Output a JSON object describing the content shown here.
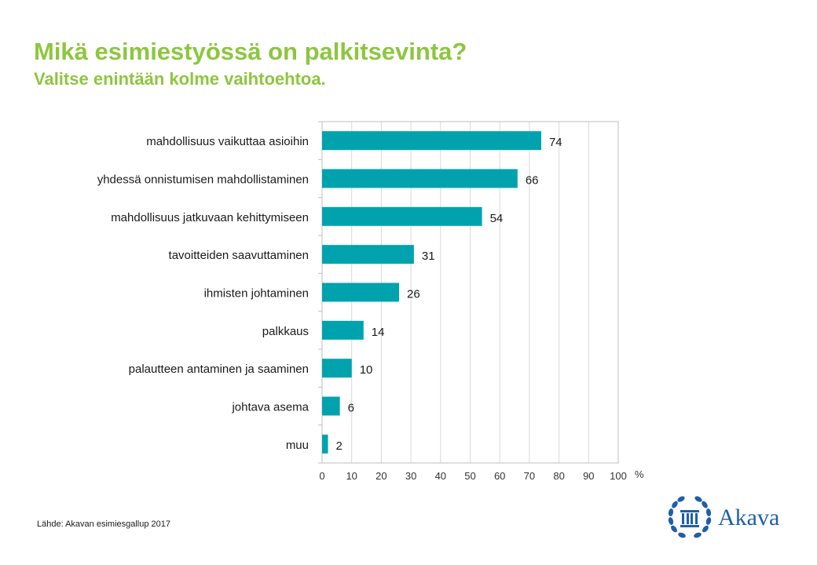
{
  "header": {
    "title": "Mikä esimiestyössä on palkitsevinta?",
    "subtitle": "Valitse enintään kolme vaihtoehtoa."
  },
  "footer": {
    "source": "Lähde: Akavan esimiesgallup 2017",
    "logo_text": "Akava"
  },
  "colors": {
    "title": "#8dc63f",
    "bar": "#00a3ad",
    "grid": "#d9d9d9",
    "frame": "#bfbfbf",
    "logo": "#1f5fa8"
  },
  "icons": {
    "logo": "akava-laurel-column-icon"
  },
  "chart_data": {
    "type": "bar",
    "orientation": "horizontal",
    "categories": [
      "mahdollisuus vaikuttaa asioihin",
      "yhdessä onnistumisen mahdollistaminen",
      "mahdollisuus jatkuvaan kehittymiseen",
      "tavoitteiden saavuttaminen",
      "ihmisten johtaminen",
      "palkkaus",
      "palautteen antaminen ja saaminen",
      "johtava asema",
      "muu"
    ],
    "values": [
      74,
      66,
      54,
      31,
      26,
      14,
      10,
      6,
      2
    ],
    "xlim": [
      0,
      100
    ],
    "xticks": [
      0,
      10,
      20,
      30,
      40,
      50,
      60,
      70,
      80,
      90,
      100
    ],
    "unit": "%",
    "grid": true,
    "legend": "none"
  }
}
